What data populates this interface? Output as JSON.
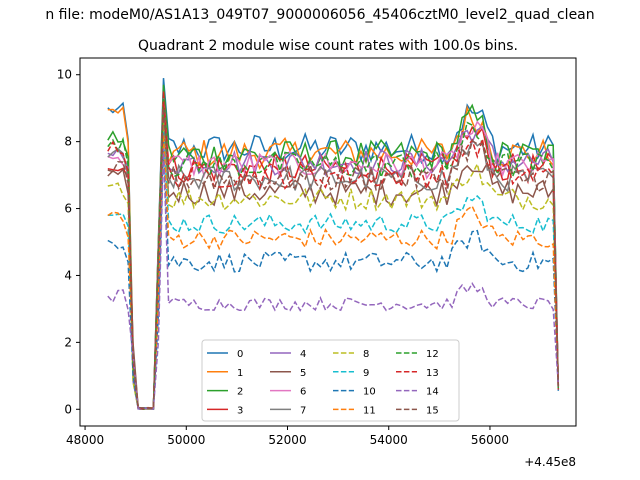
{
  "figure": {
    "suptitle": "n file: modeM0/AS1A13_049T07_9000006056_45406cztM0_level2_quad_clean"
  },
  "chart_data": {
    "type": "line",
    "title": "Quadrant 2 module wise count rates with 100.0s bins.",
    "xlabel": "",
    "ylabel": "",
    "x_offset_label": "+4.45e8",
    "xlim": [
      47900,
      57700
    ],
    "ylim": [
      -0.5,
      10.5
    ],
    "xticks": [
      48000,
      50000,
      52000,
      54000,
      56000
    ],
    "yticks": [
      0,
      2,
      4,
      6,
      8,
      10
    ],
    "grid": false,
    "legend_location": "lower center",
    "legend_columns": 4,
    "x": {
      "start": 48450,
      "step": 100,
      "count": 90
    },
    "series": [
      {
        "name": "0",
        "color": "#1f77b4",
        "linestyle": "solid",
        "base": 7.8,
        "amp": 0.45,
        "start": 8.95,
        "spike": 9.9
      },
      {
        "name": "1",
        "color": "#ff7f0e",
        "linestyle": "solid",
        "base": 7.65,
        "amp": 0.45,
        "start": 8.9,
        "spike": 9.6
      },
      {
        "name": "2",
        "color": "#2ca02c",
        "linestyle": "solid",
        "base": 7.6,
        "amp": 0.45,
        "start": 8.1,
        "spike": 9.7
      },
      {
        "name": "3",
        "color": "#d62728",
        "linestyle": "solid",
        "base": 7.2,
        "amp": 0.45,
        "start": 7.3,
        "spike": 9.5
      },
      {
        "name": "4",
        "color": "#9467bd",
        "linestyle": "solid",
        "base": 7.4,
        "amp": 0.4,
        "start": 7.7,
        "spike": 9.3
      },
      {
        "name": "5",
        "color": "#8c564b",
        "linestyle": "solid",
        "base": 6.5,
        "amp": 0.4,
        "start": 7.0,
        "spike": 8.9
      },
      {
        "name": "6",
        "color": "#e377c2",
        "linestyle": "solid",
        "base": 7.3,
        "amp": 0.4,
        "start": 7.5,
        "spike": 9.2
      },
      {
        "name": "7",
        "color": "#7f7f7f",
        "linestyle": "solid",
        "base": 6.9,
        "amp": 0.4,
        "start": 7.6,
        "spike": 9.0
      },
      {
        "name": "8",
        "color": "#bcbd22",
        "linestyle": "dashed",
        "base": 6.3,
        "amp": 0.35,
        "start": 6.6,
        "spike": 8.6
      },
      {
        "name": "9",
        "color": "#17becf",
        "linestyle": "dashed",
        "base": 5.55,
        "amp": 0.3,
        "start": 6.0,
        "spike": 8.3
      },
      {
        "name": "10",
        "color": "#1f77b4",
        "linestyle": "dashed",
        "base": 4.4,
        "amp": 0.3,
        "start": 5.0,
        "spike": 8.0
      },
      {
        "name": "11",
        "color": "#ff7f0e",
        "linestyle": "dashed",
        "base": 5.1,
        "amp": 0.3,
        "start": 5.8,
        "spike": 8.2
      },
      {
        "name": "12",
        "color": "#2ca02c",
        "linestyle": "dashed",
        "base": 7.3,
        "amp": 0.4,
        "start": 7.9,
        "spike": 9.3
      },
      {
        "name": "13",
        "color": "#d62728",
        "linestyle": "dashed",
        "base": 7.0,
        "amp": 0.4,
        "start": 7.8,
        "spike": 9.2
      },
      {
        "name": "14",
        "color": "#9467bd",
        "linestyle": "dashed",
        "base": 3.15,
        "amp": 0.2,
        "start": 3.4,
        "spike": 7.8
      },
      {
        "name": "15",
        "color": "#8c564b",
        "linestyle": "dashed",
        "base": 6.9,
        "amp": 0.4,
        "start": 7.2,
        "spike": 9.0
      }
    ]
  }
}
